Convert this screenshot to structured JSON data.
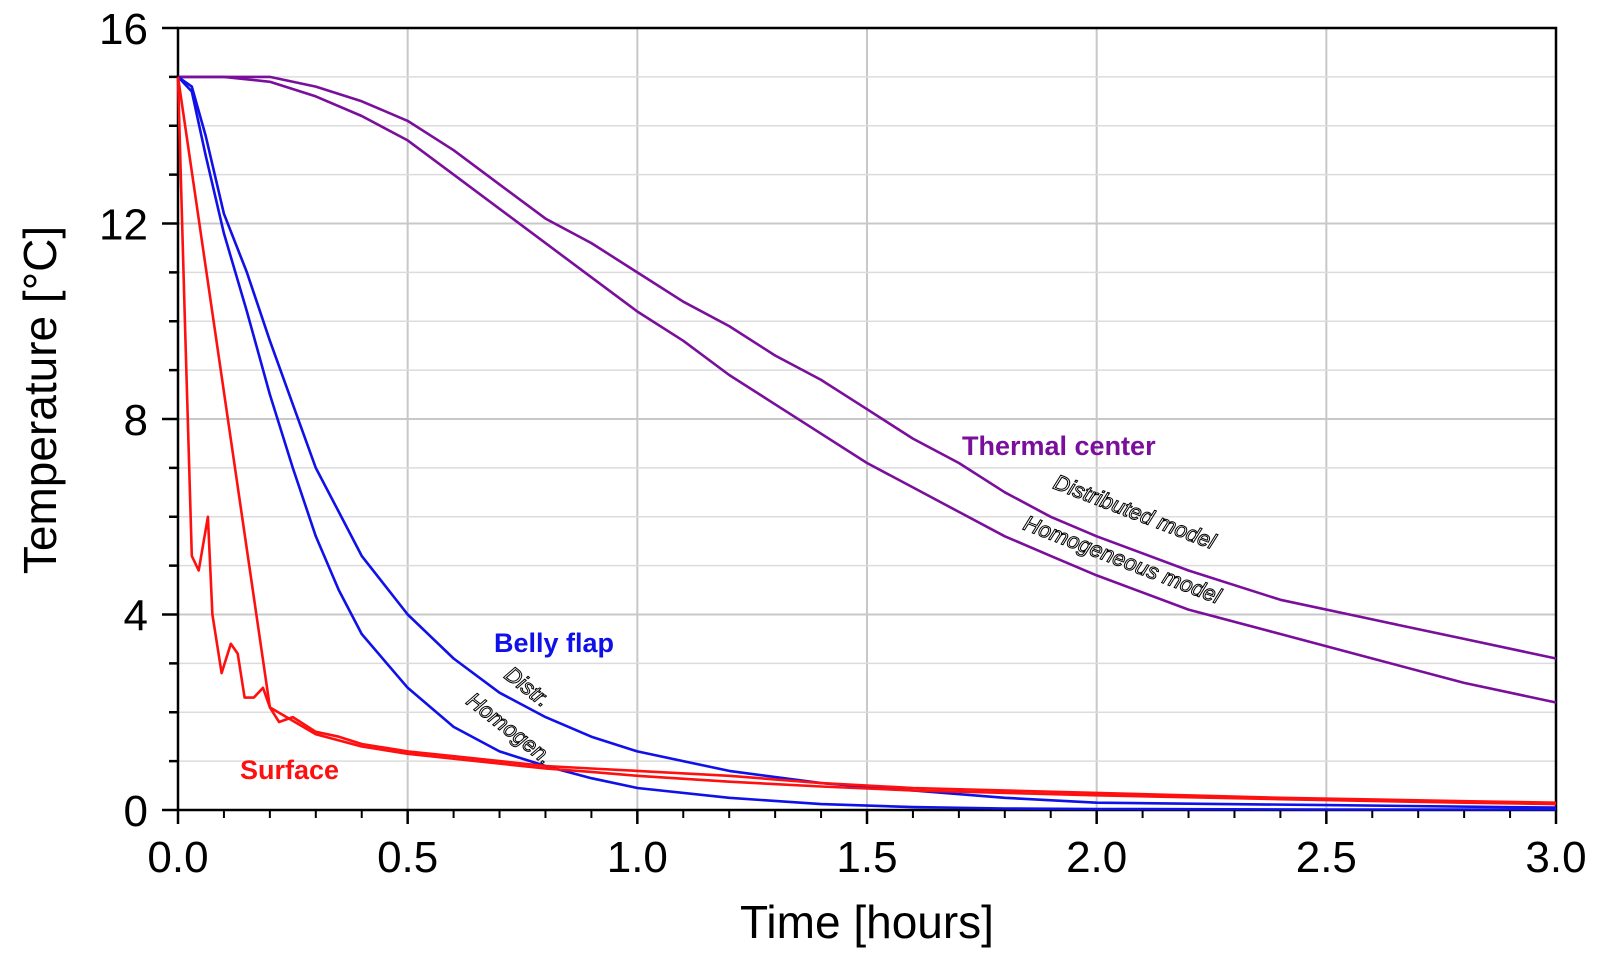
{
  "chart_data": {
    "type": "line",
    "xlabel": "Time  [hours]",
    "ylabel": "Temperature  [°C]",
    "xlim": [
      0,
      3.0
    ],
    "ylim": [
      0,
      16
    ],
    "x_ticks": [
      "0.0",
      "0.5",
      "1.0",
      "1.5",
      "2.0",
      "2.5",
      "3.0"
    ],
    "y_ticks": [
      "0",
      "4",
      "8",
      "12",
      "16"
    ],
    "grid": true,
    "colors": {
      "thermal_center": "#7a0f9c",
      "belly_flap": "#1010e8",
      "surface": "#ff1010"
    },
    "annotations": {
      "thermal_center": "Thermal center",
      "distributed_model": "Distributed model",
      "homogeneous_model": "Homogeneous model",
      "belly_flap": "Belly flap",
      "distr": "Distr.",
      "homogen": "Homogen.",
      "surface": "Surface"
    },
    "series": [
      {
        "group": "thermal_center",
        "model": "distributed",
        "x": [
          0,
          0.1,
          0.2,
          0.3,
          0.4,
          0.5,
          0.6,
          0.7,
          0.8,
          0.9,
          1.0,
          1.1,
          1.2,
          1.3,
          1.4,
          1.5,
          1.6,
          1.7,
          1.8,
          1.9,
          2.0,
          2.2,
          2.4,
          2.6,
          2.8,
          3.0
        ],
        "y": [
          15.0,
          15.0,
          15.0,
          14.8,
          14.5,
          14.1,
          13.5,
          12.8,
          12.1,
          11.6,
          11.0,
          10.4,
          9.9,
          9.3,
          8.8,
          8.2,
          7.6,
          7.1,
          6.5,
          6.0,
          5.6,
          4.9,
          4.3,
          3.9,
          3.5,
          3.1
        ]
      },
      {
        "group": "thermal_center",
        "model": "homogeneous",
        "x": [
          0,
          0.1,
          0.2,
          0.3,
          0.4,
          0.5,
          0.6,
          0.7,
          0.8,
          0.9,
          1.0,
          1.1,
          1.2,
          1.3,
          1.4,
          1.5,
          1.6,
          1.7,
          1.8,
          1.9,
          2.0,
          2.2,
          2.4,
          2.6,
          2.8,
          3.0
        ],
        "y": [
          15.0,
          15.0,
          14.9,
          14.6,
          14.2,
          13.7,
          13.0,
          12.3,
          11.6,
          10.9,
          10.2,
          9.6,
          8.9,
          8.3,
          7.7,
          7.1,
          6.6,
          6.1,
          5.6,
          5.2,
          4.8,
          4.1,
          3.6,
          3.1,
          2.6,
          2.2
        ]
      },
      {
        "group": "belly_flap",
        "model": "distributed",
        "x": [
          0,
          0.03,
          0.06,
          0.1,
          0.15,
          0.2,
          0.25,
          0.3,
          0.35,
          0.4,
          0.5,
          0.6,
          0.7,
          0.8,
          0.9,
          1.0,
          1.2,
          1.4,
          1.6,
          1.8,
          2.0,
          2.5,
          3.0
        ],
        "y": [
          15.0,
          14.8,
          13.8,
          12.2,
          11.0,
          9.6,
          8.3,
          7.0,
          6.1,
          5.2,
          4.0,
          3.1,
          2.4,
          1.9,
          1.5,
          1.2,
          0.8,
          0.55,
          0.4,
          0.25,
          0.15,
          0.1,
          0.05
        ]
      },
      {
        "group": "belly_flap",
        "model": "homogeneous",
        "x": [
          0,
          0.03,
          0.06,
          0.1,
          0.15,
          0.2,
          0.25,
          0.3,
          0.35,
          0.4,
          0.5,
          0.6,
          0.7,
          0.8,
          0.9,
          1.0,
          1.2,
          1.4,
          1.6,
          1.8,
          2.0,
          2.5,
          3.0
        ],
        "y": [
          15.0,
          14.7,
          13.4,
          11.8,
          10.2,
          8.5,
          7.0,
          5.6,
          4.5,
          3.6,
          2.5,
          1.7,
          1.2,
          0.9,
          0.65,
          0.45,
          0.25,
          0.12,
          0.06,
          0.03,
          0.02,
          0.01,
          0.01
        ]
      },
      {
        "group": "surface",
        "model": "distributed",
        "x": [
          0,
          0.015,
          0.03,
          0.045,
          0.065,
          0.075,
          0.095,
          0.115,
          0.13,
          0.145,
          0.165,
          0.185,
          0.2,
          0.22,
          0.25,
          0.3,
          0.35,
          0.4,
          0.5,
          0.6,
          0.7,
          0.8,
          0.9,
          1.0,
          1.2,
          1.4,
          1.6,
          2.0,
          2.4,
          2.8,
          3.0
        ],
        "y": [
          15.0,
          10.0,
          5.2,
          4.9,
          6.0,
          4.0,
          2.8,
          3.4,
          3.2,
          2.3,
          2.3,
          2.5,
          2.1,
          1.8,
          1.9,
          1.6,
          1.5,
          1.35,
          1.2,
          1.1,
          1.0,
          0.9,
          0.85,
          0.8,
          0.7,
          0.55,
          0.45,
          0.35,
          0.25,
          0.18,
          0.15
        ]
      },
      {
        "group": "surface",
        "model": "homogeneous",
        "x": [
          0,
          0.2,
          0.3,
          0.4,
          0.5,
          0.6,
          0.7,
          0.8,
          0.9,
          1.0,
          1.2,
          1.4,
          1.6,
          2.0,
          2.4,
          2.8,
          3.0
        ],
        "y": [
          15.0,
          2.1,
          1.55,
          1.3,
          1.15,
          1.05,
          0.95,
          0.85,
          0.78,
          0.7,
          0.58,
          0.48,
          0.4,
          0.3,
          0.22,
          0.15,
          0.12
        ]
      }
    ]
  }
}
